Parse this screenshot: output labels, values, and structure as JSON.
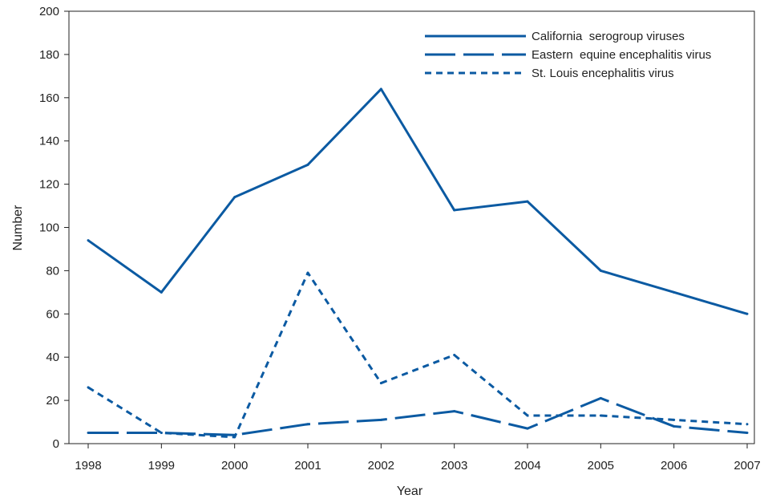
{
  "chart_data": {
    "type": "line",
    "title": "",
    "xlabel": "Year",
    "ylabel": "Number",
    "categories": [
      "1998",
      "1999",
      "2000",
      "2001",
      "2002",
      "2003",
      "2004",
      "2005",
      "2006",
      "2007"
    ],
    "ylim": [
      0,
      200
    ],
    "yticks": [
      0,
      20,
      40,
      60,
      80,
      100,
      120,
      140,
      160,
      180,
      200
    ],
    "grid": false,
    "legend_position": "top-right",
    "series": [
      {
        "name": "California  serogroup viruses",
        "style": "solid",
        "color": "#0b5aa2",
        "values": [
          94,
          70,
          114,
          129,
          164,
          108,
          112,
          80,
          70,
          60
        ]
      },
      {
        "name": "Eastern  equine encephalitis virus",
        "style": "long-dash",
        "color": "#0b5aa2",
        "values": [
          5,
          5,
          4,
          9,
          11,
          15,
          7,
          21,
          8,
          5
        ]
      },
      {
        "name": "St. Louis encephalitis virus",
        "style": "short-dash",
        "color": "#0b5aa2",
        "values": [
          26,
          5,
          3,
          79,
          28,
          41,
          13,
          13,
          11,
          9
        ]
      }
    ]
  }
}
